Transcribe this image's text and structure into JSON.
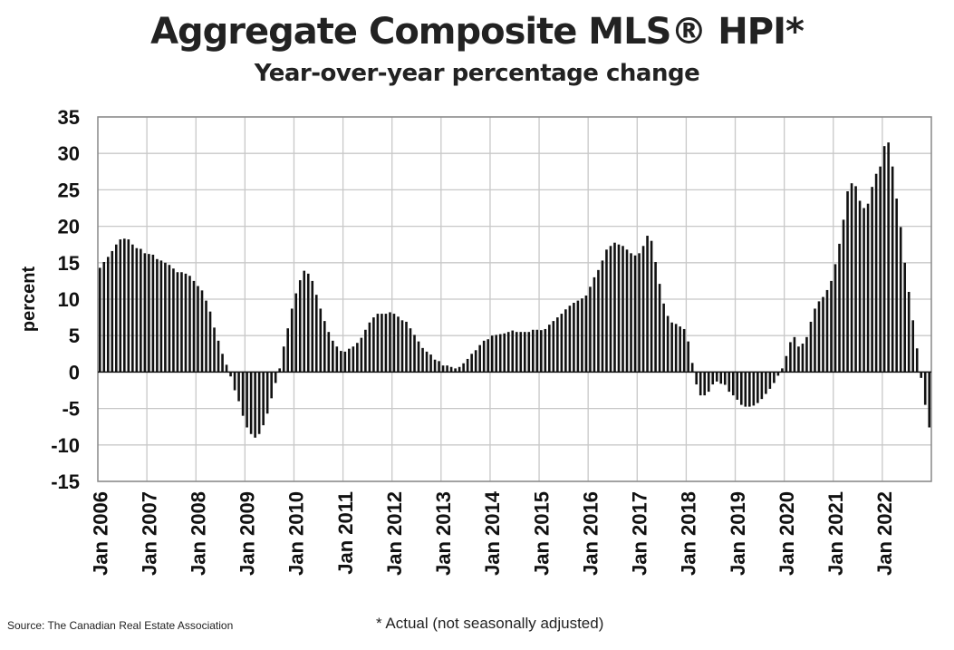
{
  "chart_data": {
    "type": "bar",
    "title": "Aggregate Composite MLS® HPI*",
    "subtitle": "Year-over-year percentage change",
    "xlabel": "",
    "ylabel": "percent",
    "ylim": [
      -15,
      35
    ],
    "yticks": [
      35,
      30,
      25,
      20,
      15,
      10,
      5,
      0,
      -5,
      -10,
      -15
    ],
    "grid": true,
    "bar_color": "#111111",
    "grid_color": "#c8c8c8",
    "frequency": "monthly",
    "start": "Jan 2006",
    "end": "Dec 2022",
    "xtick_labels": [
      "Jan 2006",
      "Jan 2007",
      "Jan 2008",
      "Jan 2009",
      "Jan 2010",
      "Jan 2011",
      "Jan 2012",
      "Jan 2013",
      "Jan 2014",
      "Jan 2015",
      "Jan 2016",
      "Jan 2017",
      "Jan 2018",
      "Jan 2019",
      "Jan 2020",
      "Jan 2021",
      "Jan 2022"
    ],
    "values_by_year": {
      "2006": [
        14.3,
        15.1,
        15.8,
        16.6,
        17.5,
        18.2,
        18.3,
        18.2,
        17.5,
        17.0,
        16.9,
        16.3
      ],
      "2007": [
        16.2,
        16.1,
        15.5,
        15.3,
        15.0,
        14.7,
        14.2,
        13.7,
        13.7,
        13.5,
        13.2,
        12.5
      ],
      "2008": [
        11.8,
        11.2,
        9.8,
        8.3,
        6.1,
        4.3,
        2.5,
        1.0,
        -0.6,
        -2.5,
        -4.0,
        -6.0
      ],
      "2009": [
        -7.6,
        -8.5,
        -9.0,
        -8.5,
        -7.3,
        -5.7,
        -3.6,
        -1.5,
        0.5,
        3.5,
        6.0,
        8.7
      ],
      "2010": [
        10.8,
        12.6,
        13.9,
        13.5,
        12.5,
        10.6,
        8.7,
        7.0,
        5.5,
        4.3,
        3.5,
        2.9
      ],
      "2011": [
        2.8,
        3.2,
        3.5,
        4.0,
        4.7,
        5.8,
        6.8,
        7.5,
        8.0,
        8.0,
        8.0,
        8.2
      ],
      "2012": [
        8.0,
        7.6,
        7.1,
        6.9,
        6.0,
        5.1,
        4.2,
        3.3,
        2.8,
        2.4,
        1.7,
        1.5
      ],
      "2013": [
        0.9,
        0.9,
        0.7,
        0.5,
        0.7,
        1.2,
        1.8,
        2.5,
        3.0,
        3.7,
        4.3,
        4.5
      ],
      "2014": [
        5.0,
        5.1,
        5.2,
        5.3,
        5.5,
        5.7,
        5.5,
        5.5,
        5.5,
        5.5,
        5.8,
        5.8
      ],
      "2015": [
        5.75,
        5.9,
        6.5,
        7.0,
        7.5,
        8.0,
        8.6,
        9.1,
        9.5,
        9.8,
        10.1,
        10.5
      ],
      "2016": [
        11.7,
        13.0,
        14.0,
        15.3,
        16.8,
        17.3,
        17.75,
        17.5,
        17.3,
        16.8,
        16.3,
        16.0
      ],
      "2017": [
        16.3,
        17.3,
        18.7,
        18.0,
        15.1,
        12.1,
        9.4,
        7.7,
        6.8,
        6.6,
        6.25,
        5.9
      ],
      "2018": [
        4.2,
        1.25,
        -1.7,
        -3.2,
        -3.2,
        -2.7,
        -1.7,
        -1.3,
        -1.6,
        -1.75,
        -2.7,
        -3.2
      ],
      "2019": [
        -3.8,
        -4.5,
        -4.75,
        -4.75,
        -4.6,
        -4.25,
        -3.7,
        -3.0,
        -2.3,
        -1.5,
        -0.5,
        0.5
      ],
      "2020": [
        2.2,
        4.1,
        4.8,
        3.5,
        3.9,
        4.8,
        6.9,
        8.7,
        9.7,
        10.3,
        11.25,
        12.5
      ],
      "2021": [
        14.8,
        17.6,
        20.9,
        24.8,
        25.9,
        25.5,
        23.5,
        22.5,
        23.1,
        25.4,
        27.2,
        28.2
      ],
      "2022": [
        31.0,
        31.5,
        28.2,
        23.8,
        19.9,
        15.0,
        11.0,
        7.1,
        3.25,
        -0.8,
        -4.5,
        -7.6
      ]
    }
  },
  "source": "Source: The Canadian Real Estate Association",
  "footnote": "* Actual (not seasonally adjusted)"
}
